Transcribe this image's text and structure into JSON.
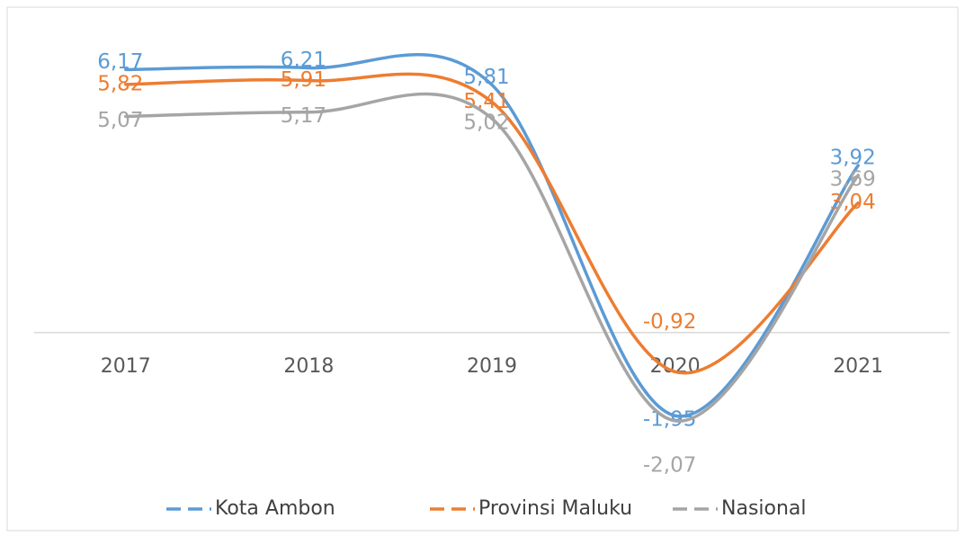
{
  "chart_data": {
    "type": "line",
    "categories": [
      "2017",
      "2018",
      "2019",
      "2020",
      "2021"
    ],
    "series": [
      {
        "name": "Kota Ambon",
        "color": "#5b9bd5",
        "values": [
          6.17,
          6.21,
          5.81,
          -1.95,
          3.92
        ],
        "value_labels": [
          "6,17",
          "6,21",
          "5,81",
          "-1,95",
          "3,92"
        ]
      },
      {
        "name": "Provinsi Maluku",
        "color": "#ed7d31",
        "values": [
          5.82,
          5.91,
          5.41,
          -0.92,
          3.04
        ],
        "value_labels": [
          "5,82",
          "5,91",
          "5,41",
          "-0,92",
          "3,04"
        ]
      },
      {
        "name": "Nasional",
        "color": "#a5a5a5",
        "values": [
          5.07,
          5.17,
          5.02,
          -2.07,
          3.69
        ],
        "value_labels": [
          "5,07",
          "5,17",
          "5,02",
          "-2,07",
          "3,69"
        ]
      }
    ],
    "ylim": [
      -3,
      7
    ],
    "smooth": true,
    "legend": "bottom"
  }
}
